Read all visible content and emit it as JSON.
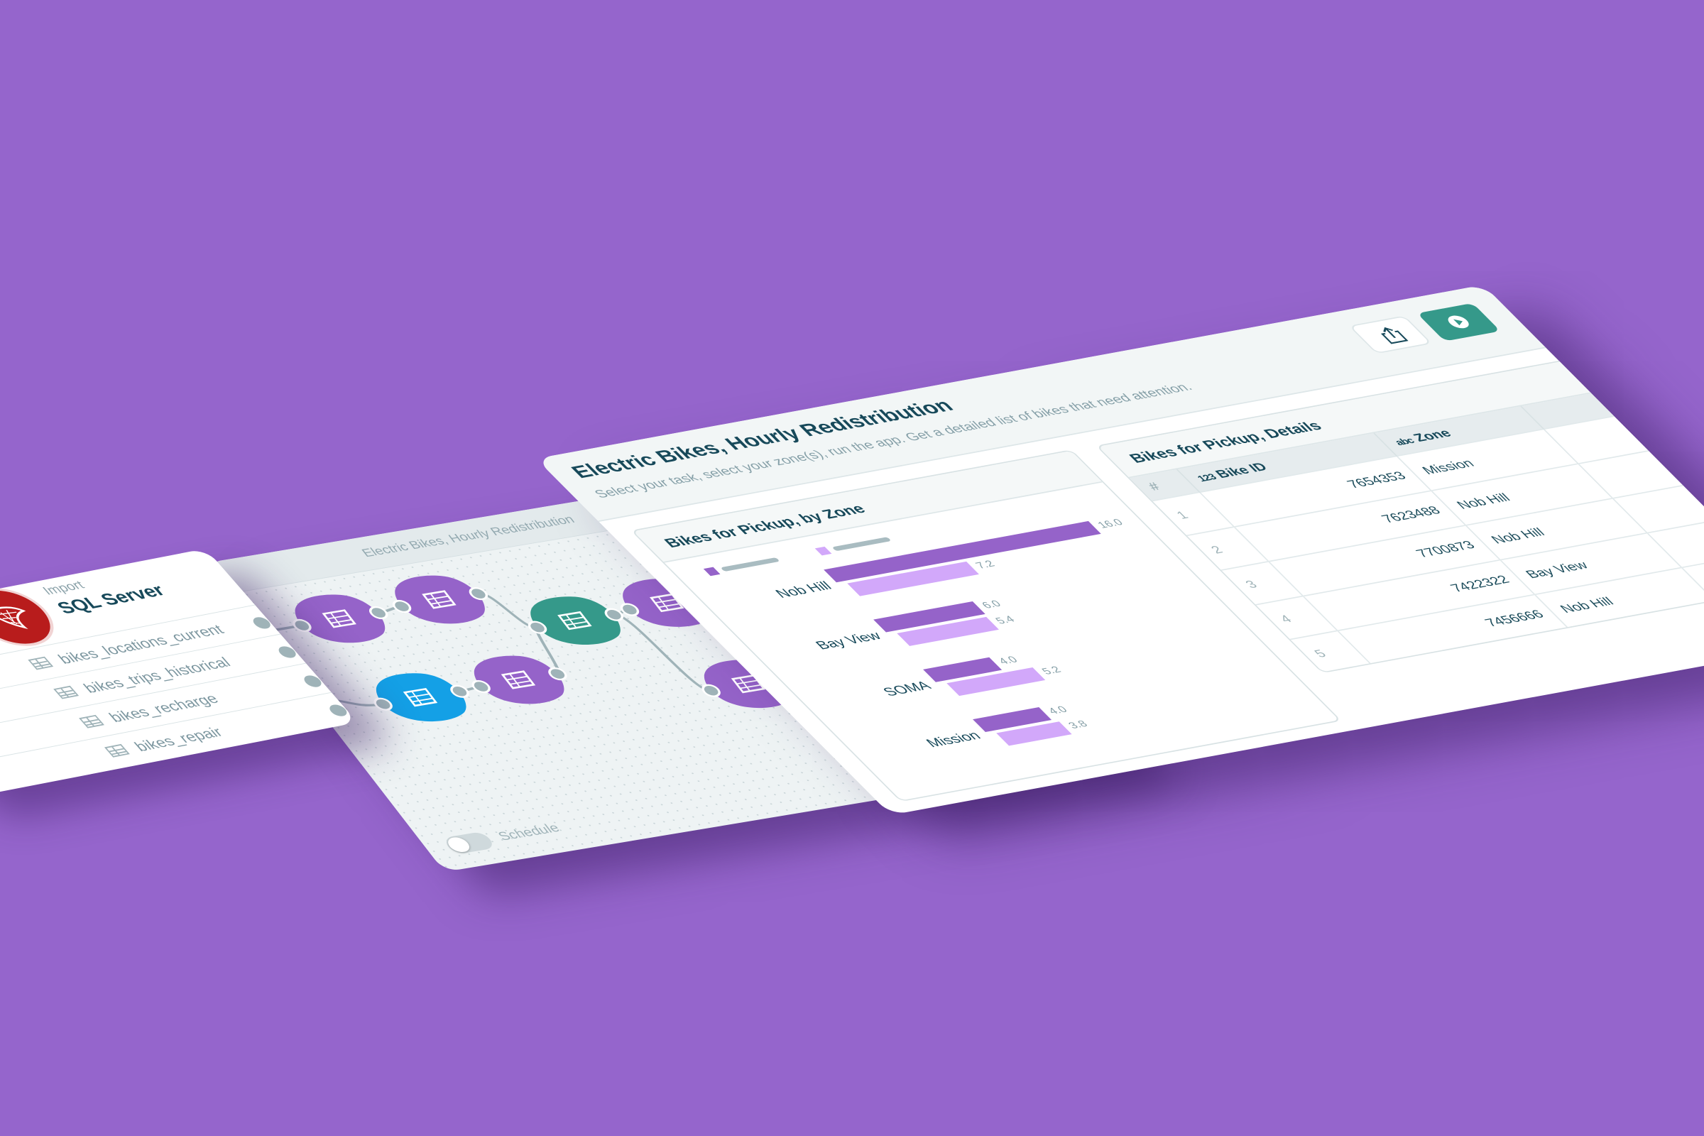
{
  "colors": {
    "background": "#9565cc",
    "primary_series": "#9563c9",
    "secondary_series": "#d2a8fa",
    "run_button": "#35998a",
    "title_text": "#17495a"
  },
  "import_panel": {
    "label": "Import",
    "source": "SQL Server",
    "source_icon": "sql-server-icon",
    "tables": [
      "bikes_locations_current",
      "bikes_trips_historical",
      "bikes_recharge",
      "bikes_repair"
    ]
  },
  "flow_panel": {
    "title": "Electric Bikes, Hourly Redistribution",
    "schedule_label": "Schedule",
    "schedule_enabled": false,
    "nodes": [
      {
        "type": "edit-table",
        "color": "#9563c9"
      },
      {
        "type": "calculate",
        "color": "#9563c9"
      },
      {
        "type": "join",
        "color": "#35998a"
      },
      {
        "type": "copy",
        "color": "#14a0e6"
      },
      {
        "type": "edit-table",
        "color": "#9563c9"
      },
      {
        "type": "output",
        "color": "#9563c9"
      },
      {
        "type": "output",
        "color": "#9563c9"
      }
    ]
  },
  "app": {
    "title": "Electric Bikes, Hourly Redistribution",
    "subtitle": "Select your task, select your zone(s), run the app. Get a detailed list of bikes that need attention.",
    "share_icon": "share-icon",
    "run_icon": "play-icon"
  },
  "chart_data": {
    "type": "bar",
    "orientation": "horizontal",
    "title": "Bikes for Pickup, by Zone",
    "categories": [
      "Nob Hill",
      "Bay View",
      "SOMA",
      "Mission"
    ],
    "series": [
      {
        "values": [
          16.0,
          6.0,
          4.0,
          4.0
        ],
        "color": "#9563c9"
      },
      {
        "values": [
          7.2,
          5.4,
          5.2,
          3.8
        ],
        "color": "#d2a8fa"
      }
    ],
    "xlim": [
      0,
      16
    ],
    "grid": false,
    "legend": "top-left"
  },
  "table": {
    "title": "Bikes for Pickup, Details",
    "columns": [
      {
        "label": "#"
      },
      {
        "type_badge": "123",
        "label": "Bike ID"
      },
      {
        "type_badge": "abc",
        "label": "Zone"
      }
    ],
    "rows": [
      {
        "n": "1",
        "id": "7654353",
        "zone": "Mission"
      },
      {
        "n": "2",
        "id": "7623488",
        "zone": "Nob Hill"
      },
      {
        "n": "3",
        "id": "7700873",
        "zone": "Nob Hill"
      },
      {
        "n": "4",
        "id": "7422322",
        "zone": "Bay View"
      },
      {
        "n": "5",
        "id": "7456666",
        "zone": "Nob Hill"
      }
    ]
  }
}
